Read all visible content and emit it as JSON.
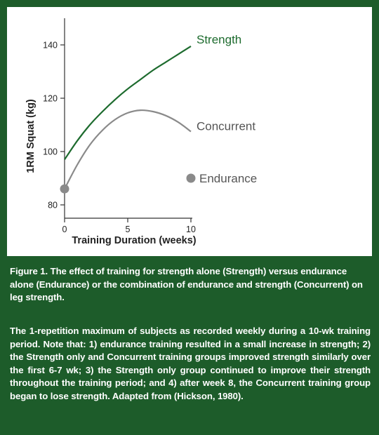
{
  "chart_data": {
    "type": "line",
    "title": "",
    "xlabel": "Training Duration (weeks)",
    "ylabel": "1RM Squat (kg)",
    "xlim": [
      0,
      10
    ],
    "ylim": [
      75,
      150
    ],
    "x_ticks": [
      0,
      5,
      10
    ],
    "y_ticks": [
      80,
      100,
      120,
      140
    ],
    "grid": false,
    "legend": "inline labels at line ends",
    "series": [
      {
        "name": "Strength",
        "color": "#1d6b2e",
        "x": [
          0,
          1,
          2,
          3,
          4,
          5,
          6,
          7,
          8,
          9,
          10
        ],
        "y": [
          97,
          104,
          110,
          115,
          119.5,
          123.5,
          127,
          130.5,
          133.5,
          136.5,
          139.5
        ]
      },
      {
        "name": "Concurrent",
        "color": "#8a8a8a",
        "x": [
          0,
          1,
          2,
          3,
          4,
          5,
          6,
          7,
          8,
          9,
          10
        ],
        "y": [
          86,
          95,
          102.5,
          108,
          112,
          114.5,
          115.5,
          115,
          113.5,
          111,
          107.5
        ]
      },
      {
        "name": "Endurance",
        "color": "#8a8a8a",
        "type": "scatter",
        "x": [
          0,
          10
        ],
        "y": [
          86,
          90
        ]
      }
    ]
  },
  "caption": {
    "figure_text": "Figure 1. The effect of training for strength alone (Strength) versus endurance alone (Endurance) or the combination of endurance and strength (Concurrent) on leg strength.",
    "description": "The 1-repetition maximum of subjects as recorded weekly during a 10-wk training period. Note that: 1) endurance training resulted in a small increase in strength; 2) the Strength only and Concurrent training groups improved strength similarly over the first 6-7 wk; 3) the Strength only group continued to improve their strength throughout the training period; and 4) after week 8, the Concurrent training group began to lose strength. Adapted from (Hickson, 1980)."
  },
  "colors": {
    "background": "#1d5c2a",
    "panel": "#ffffff",
    "strength": "#1d6b2e",
    "concurrent": "#8a8a8a",
    "axis": "#333333"
  }
}
